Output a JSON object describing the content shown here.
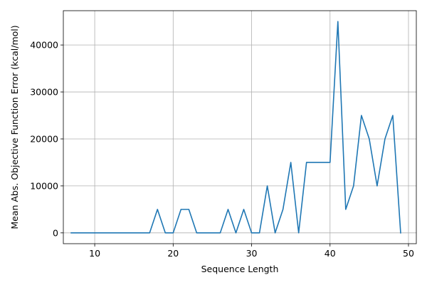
{
  "chart_data": {
    "type": "line",
    "xlabel": "Sequence Length",
    "ylabel": "Mean Abs. Objective Function Error (kcal/mol)",
    "xlim": [
      6,
      51
    ],
    "ylim": [
      -2300,
      47300
    ],
    "xticks": [
      10,
      20,
      30,
      40,
      50
    ],
    "yticks": [
      0,
      10000,
      20000,
      30000,
      40000
    ],
    "grid": true,
    "line_color": "#1f77b4",
    "series": [
      {
        "x": [
          7,
          8,
          9,
          10,
          11,
          12,
          13,
          14,
          15,
          16,
          17,
          18,
          19,
          20,
          21,
          22,
          23,
          24,
          25,
          26,
          27,
          28,
          29,
          30,
          31,
          32,
          33,
          34,
          35,
          36,
          37,
          38,
          39,
          40,
          41,
          42,
          43,
          44,
          45,
          46,
          47,
          48,
          49
        ],
        "values": [
          0,
          0,
          0,
          0,
          0,
          0,
          0,
          0,
          0,
          0,
          0,
          5000,
          0,
          0,
          5000,
          5000,
          0,
          0,
          0,
          0,
          5000,
          0,
          5000,
          0,
          0,
          10000,
          0,
          5000,
          15000,
          0,
          15000,
          15000,
          15000,
          15000,
          45000,
          5000,
          10000,
          25000,
          20000,
          10000,
          20000,
          25000,
          0
        ]
      }
    ]
  }
}
